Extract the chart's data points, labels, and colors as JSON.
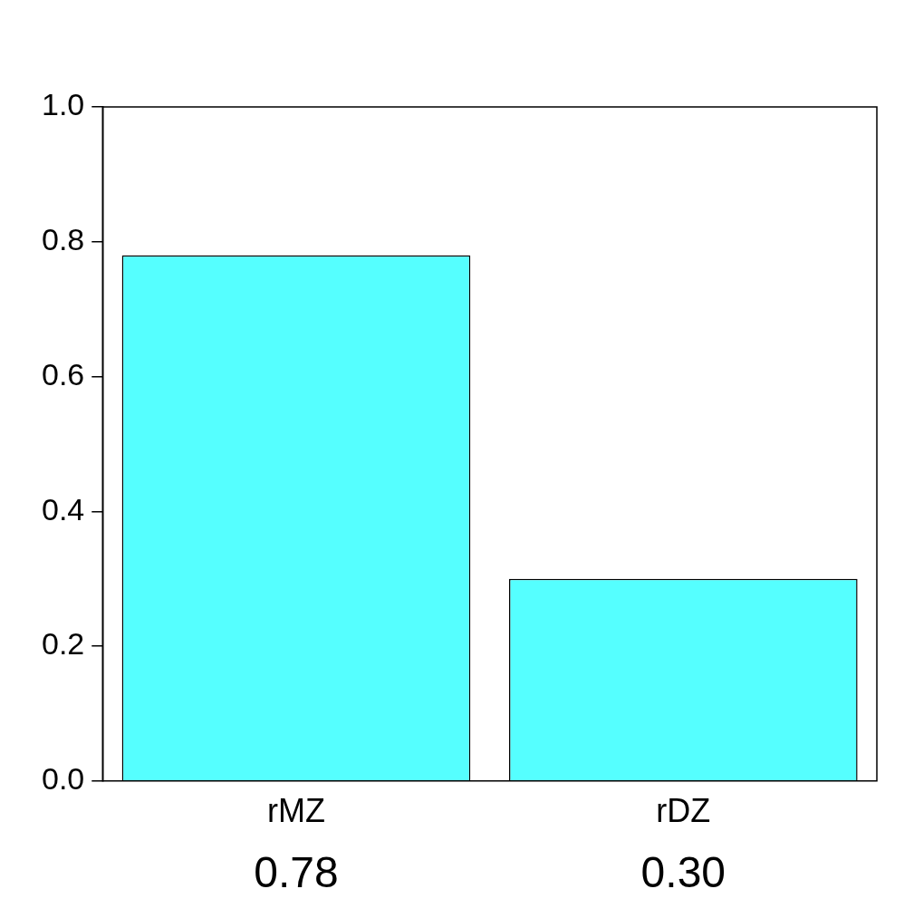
{
  "chart_data": {
    "type": "bar",
    "categories": [
      "rMZ",
      "rDZ"
    ],
    "values": [
      0.78,
      0.3
    ],
    "value_labels": [
      "0.78",
      "0.30"
    ],
    "color": "#55ffff",
    "ylim": [
      0,
      1
    ],
    "yticks": [
      {
        "value": 0,
        "label": "0.0"
      },
      {
        "value": 0.2,
        "label": "0.2"
      },
      {
        "value": 0.4,
        "label": "0.4"
      },
      {
        "value": 0.6,
        "label": "0.6"
      },
      {
        "value": 0.8,
        "label": "0.8"
      },
      {
        "value": 1,
        "label": "1.0"
      }
    ],
    "grid": false,
    "legend": false
  }
}
